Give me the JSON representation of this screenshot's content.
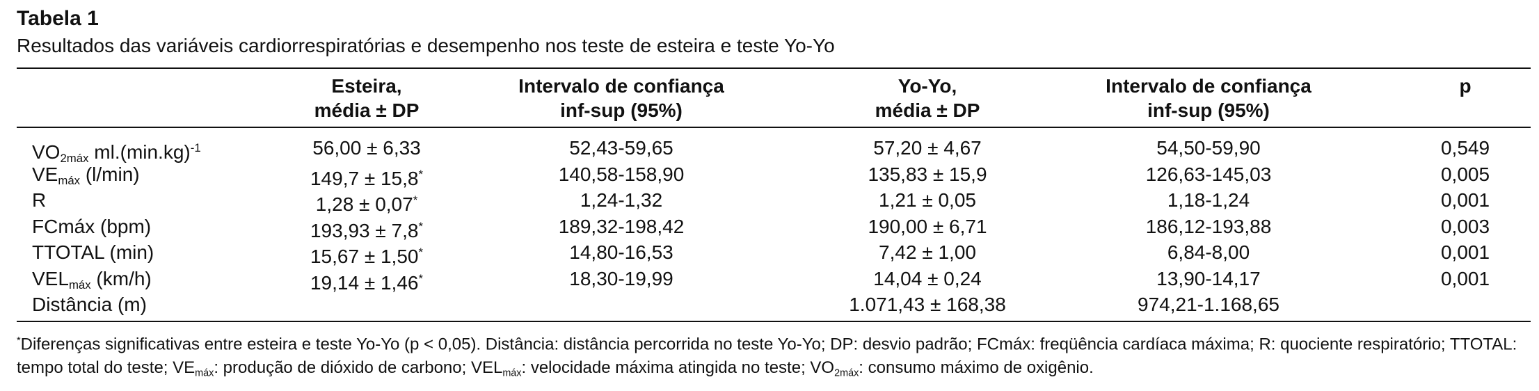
{
  "title": "Tabela 1",
  "subtitle": "Resultados das variáveis cardiorrespiratórias e desempenho nos teste de esteira e teste Yo-Yo",
  "table": {
    "header": [
      [
        "Esteira,",
        "média ± DP"
      ],
      [
        "Intervalo de confiança",
        "inf-sup (95%)"
      ],
      [
        "Yo-Yo,",
        "média ± DP"
      ],
      [
        "Intervalo de confiança",
        "inf-sup (95%)"
      ],
      [
        "p"
      ]
    ],
    "rows": [
      {
        "label": [
          {
            "text": "VO"
          },
          {
            "sub": "2máx"
          },
          {
            "text": " ml.(min.kg)"
          },
          {
            "sup": "-1"
          }
        ],
        "cells": [
          [
            {
              "text": "56,00 ± 6,33"
            }
          ],
          [
            {
              "text": "52,43-59,65"
            }
          ],
          [
            {
              "text": "57,20 ± 4,67"
            }
          ],
          [
            {
              "text": "54,50-59,90"
            }
          ],
          [
            {
              "text": "0,549"
            }
          ]
        ]
      },
      {
        "label": [
          {
            "text": "VE"
          },
          {
            "sub": "máx"
          },
          {
            "text": " (l/min)"
          }
        ],
        "cells": [
          [
            {
              "text": "149,7 ± 15,8"
            },
            {
              "sup": "*"
            }
          ],
          [
            {
              "text": "140,58-158,90"
            }
          ],
          [
            {
              "text": "135,83 ± 15,9"
            }
          ],
          [
            {
              "text": "126,63-145,03"
            }
          ],
          [
            {
              "text": "0,005"
            }
          ]
        ]
      },
      {
        "label": [
          {
            "text": "R"
          }
        ],
        "cells": [
          [
            {
              "text": "1,28 ± 0,07"
            },
            {
              "sup": "*"
            }
          ],
          [
            {
              "text": "1,24-1,32"
            }
          ],
          [
            {
              "text": "1,21 ± 0,05"
            }
          ],
          [
            {
              "text": "1,18-1,24"
            }
          ],
          [
            {
              "text": "0,001"
            }
          ]
        ]
      },
      {
        "label": [
          {
            "text": "FCmáx (bpm)"
          }
        ],
        "cells": [
          [
            {
              "text": "193,93 ± 7,8"
            },
            {
              "sup": "*"
            }
          ],
          [
            {
              "text": "189,32-198,42"
            }
          ],
          [
            {
              "text": "190,00 ± 6,71"
            }
          ],
          [
            {
              "text": "186,12-193,88"
            }
          ],
          [
            {
              "text": "0,003"
            }
          ]
        ]
      },
      {
        "label": [
          {
            "text": "TTOTAL (min)"
          }
        ],
        "cells": [
          [
            {
              "text": "15,67 ± 1,50"
            },
            {
              "sup": "*"
            }
          ],
          [
            {
              "text": "14,80-16,53"
            }
          ],
          [
            {
              "text": "7,42 ± 1,00"
            }
          ],
          [
            {
              "text": "6,84-8,00"
            }
          ],
          [
            {
              "text": "0,001"
            }
          ]
        ]
      },
      {
        "label": [
          {
            "text": "VEL"
          },
          {
            "sub": "máx"
          },
          {
            "text": " (km/h)"
          }
        ],
        "cells": [
          [
            {
              "text": "19,14 ± 1,46"
            },
            {
              "sup": "*"
            }
          ],
          [
            {
              "text": "18,30-19,99"
            }
          ],
          [
            {
              "text": "14,04 ± 0,24"
            }
          ],
          [
            {
              "text": "13,90-14,17"
            }
          ],
          [
            {
              "text": "0,001"
            }
          ]
        ]
      },
      {
        "label": [
          {
            "text": "Distância (m)"
          }
        ],
        "cells": [
          null,
          null,
          [
            {
              "text": "1.071,43 ± 168,38"
            }
          ],
          [
            {
              "text": "974,21-1.168,65"
            }
          ],
          null
        ]
      }
    ]
  },
  "footnote": [
    {
      "sup": "*"
    },
    {
      "text": "Diferenças significativas entre esteira e teste Yo-Yo (p < 0,05). Distância: distância percorrida no teste Yo-Yo; DP: desvio padrão; FCmáx: freqüência cardíaca máxima; R: quociente respiratório; TTOTAL: tempo total do teste; VE"
    },
    {
      "sub": "máx"
    },
    {
      "text": ": produção de dióxido de carbono; VEL"
    },
    {
      "sub": "máx"
    },
    {
      "text": ": velocidade máxima atingida no teste; VO"
    },
    {
      "sub": "2máx"
    },
    {
      "text": ": consumo máximo de oxigênio."
    }
  ]
}
